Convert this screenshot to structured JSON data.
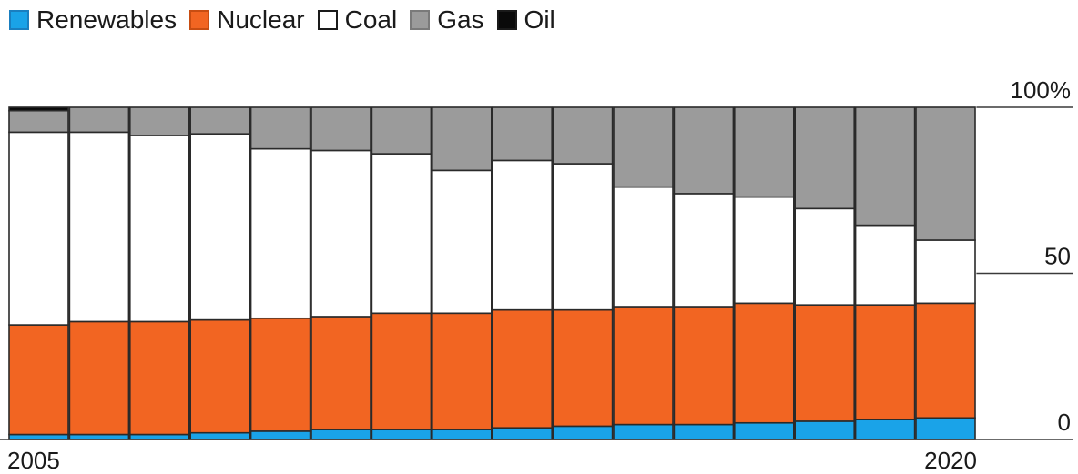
{
  "chart_data": {
    "type": "bar",
    "stacked": true,
    "percent": true,
    "x": [
      2005,
      2006,
      2007,
      2008,
      2009,
      2010,
      2011,
      2012,
      2013,
      2014,
      2015,
      2016,
      2017,
      2018,
      2019,
      2020
    ],
    "x_tick_labels": [
      "2005",
      "2020"
    ],
    "y_tick_labels": [
      "100%",
      "50",
      "0"
    ],
    "y_ticks": [
      100,
      50,
      0
    ],
    "ylim": [
      0,
      100
    ],
    "legend_position": "top-left",
    "grid": false,
    "series": [
      {
        "name": "Renewables",
        "color": "#1aa3e8",
        "values": [
          1.5,
          1.5,
          1.5,
          2,
          2.5,
          3,
          3,
          3,
          3.5,
          4,
          4.5,
          4.5,
          5,
          5.5,
          6,
          6.5
        ]
      },
      {
        "name": "Nuclear",
        "color": "#f26522",
        "values": [
          33,
          34,
          34,
          34,
          34,
          34,
          35,
          35,
          35.5,
          35,
          35.5,
          35.5,
          36,
          35,
          34.5,
          34.5
        ]
      },
      {
        "name": "Coal",
        "color": "#ffffff",
        "values": [
          58,
          57,
          56,
          56,
          51,
          50,
          48,
          43,
          45,
          44,
          36,
          34,
          32,
          29,
          24,
          19
        ]
      },
      {
        "name": "Gas",
        "color": "#9b9b9b",
        "values": [
          6.5,
          7.5,
          8.5,
          8,
          12.5,
          13,
          14,
          19,
          16,
          17,
          24,
          26,
          27,
          30.5,
          35.5,
          40
        ]
      },
      {
        "name": "Oil",
        "color": "#0a0a0a",
        "values": [
          1,
          0,
          0,
          0,
          0,
          0,
          0,
          0,
          0,
          0,
          0,
          0,
          0,
          0,
          0,
          0
        ]
      }
    ]
  }
}
